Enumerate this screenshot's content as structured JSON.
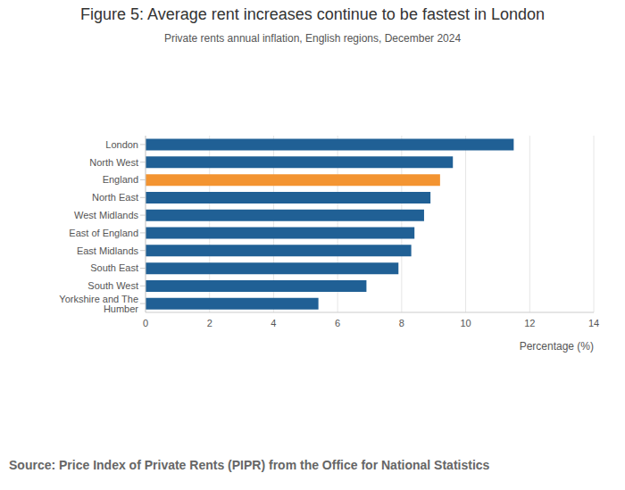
{
  "chart_data": {
    "type": "bar",
    "orientation": "horizontal",
    "title": "Figure 5: Average rent increases continue to be fastest in London",
    "subtitle": "Private rents annual inflation, English regions, December 2024",
    "x_label": "Percentage (%)",
    "source": "Source: Price Index of Private Rents (PIPR) from the Office for National Statistics",
    "categories": [
      "London",
      "North West",
      "England",
      "North East",
      "West Midlands",
      "East of England",
      "East Midlands",
      "South East",
      "South West",
      "Yorkshire and The Humber"
    ],
    "values": [
      11.5,
      9.6,
      9.2,
      8.9,
      8.7,
      8.4,
      8.3,
      7.9,
      6.9,
      5.4
    ],
    "colors": [
      "#206095",
      "#206095",
      "#f39431",
      "#206095",
      "#206095",
      "#206095",
      "#206095",
      "#206095",
      "#206095",
      "#206095"
    ],
    "xlim": [
      0,
      14
    ],
    "xticks": [
      0,
      2,
      4,
      6,
      8,
      10,
      12,
      14
    ],
    "grid": true
  }
}
